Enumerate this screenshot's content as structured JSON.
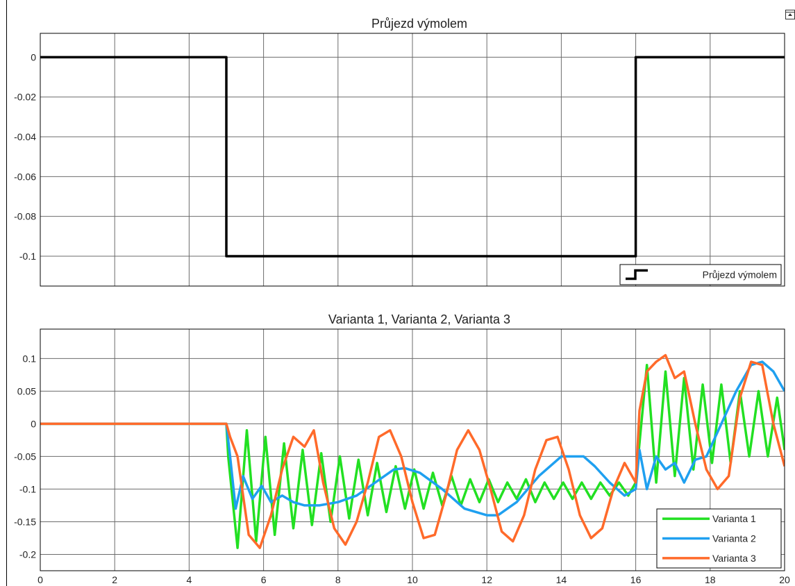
{
  "scope": {
    "colors": {
      "background": "#ffffff",
      "axes_border": "#000000",
      "grid": "#6b6b6b",
      "text": "#222222"
    },
    "toolbar_icon": "restore-window-icon"
  },
  "chart_data": [
    {
      "type": "line",
      "title": "Průjezd výmolem",
      "xlim": [
        0,
        20
      ],
      "ylim": [
        -0.115,
        0.012
      ],
      "xticks": [
        0,
        2,
        4,
        6,
        8,
        10,
        12,
        14,
        16,
        18,
        20
      ],
      "yticks": [
        -0.1,
        -0.08,
        -0.06,
        -0.04,
        -0.02,
        0
      ],
      "ytick_labels": [
        "-0.1",
        "-0.08",
        "-0.06",
        "-0.04",
        "-0.02",
        "0"
      ],
      "show_xtick_labels": false,
      "grid": true,
      "legend_placement": "bottom-right",
      "series": [
        {
          "name": "Průjezd výmolem",
          "color": "#000000",
          "x": [
            0,
            5,
            5,
            16,
            16,
            20
          ],
          "y": [
            0,
            0,
            -0.1,
            -0.1,
            0,
            0
          ]
        }
      ]
    },
    {
      "type": "line",
      "title": "Varianta 1, Varianta 2, Varianta 3",
      "xlim": [
        0,
        20
      ],
      "ylim": [
        -0.225,
        0.145
      ],
      "xticks": [
        0,
        2,
        4,
        6,
        8,
        10,
        12,
        14,
        16,
        18,
        20
      ],
      "xtick_labels": [
        "0",
        "2",
        "4",
        "6",
        "8",
        "10",
        "12",
        "14",
        "16",
        "18",
        "20"
      ],
      "yticks": [
        -0.2,
        -0.15,
        -0.1,
        -0.05,
        0,
        0.05,
        0.1
      ],
      "ytick_labels": [
        "-0.2",
        "-0.15",
        "-0.1",
        "-0.05",
        "0",
        "0.05",
        "0.1"
      ],
      "show_xtick_labels": true,
      "grid": true,
      "legend_placement": "bottom-right",
      "series": [
        {
          "name": "Varianta 1",
          "color": "#22e022",
          "x": [
            0,
            5,
            5.05,
            5.3,
            5.55,
            5.8,
            6.05,
            6.3,
            6.55,
            6.8,
            7.05,
            7.3,
            7.55,
            7.8,
            8.05,
            8.3,
            8.55,
            8.8,
            9.05,
            9.3,
            9.55,
            9.8,
            10.05,
            10.3,
            10.55,
            10.8,
            11.05,
            11.3,
            11.55,
            11.8,
            12.05,
            12.3,
            12.55,
            12.8,
            13.05,
            13.3,
            13.55,
            13.8,
            14.05,
            14.3,
            14.55,
            14.8,
            15.05,
            15.3,
            15.55,
            15.8,
            16.0,
            16.05,
            16.3,
            16.55,
            16.8,
            17.05,
            17.3,
            17.55,
            17.8,
            18.05,
            18.3,
            18.55,
            18.8,
            19.05,
            19.3,
            19.55,
            19.8,
            20.0
          ],
          "y": [
            0,
            0,
            -0.05,
            -0.19,
            -0.01,
            -0.18,
            -0.02,
            -0.17,
            -0.03,
            -0.16,
            -0.04,
            -0.155,
            -0.045,
            -0.15,
            -0.05,
            -0.145,
            -0.055,
            -0.14,
            -0.06,
            -0.135,
            -0.065,
            -0.13,
            -0.07,
            -0.13,
            -0.075,
            -0.125,
            -0.08,
            -0.125,
            -0.085,
            -0.12,
            -0.085,
            -0.12,
            -0.09,
            -0.115,
            -0.085,
            -0.12,
            -0.09,
            -0.115,
            -0.09,
            -0.115,
            -0.09,
            -0.115,
            -0.09,
            -0.11,
            -0.09,
            -0.11,
            -0.09,
            -0.06,
            0.09,
            -0.09,
            0.08,
            -0.08,
            0.07,
            -0.07,
            0.06,
            -0.06,
            0.06,
            -0.06,
            0.05,
            -0.05,
            0.05,
            -0.05,
            0.04,
            -0.04
          ]
        },
        {
          "name": "Varianta 2",
          "color": "#1fa0f0",
          "x": [
            0,
            5,
            5.1,
            5.25,
            5.45,
            5.7,
            5.95,
            6.2,
            6.5,
            6.8,
            7.1,
            7.5,
            8.0,
            8.5,
            9.0,
            9.5,
            9.8,
            10.2,
            10.8,
            11.4,
            12.0,
            12.3,
            12.8,
            13.4,
            14.0,
            14.6,
            14.9,
            15.3,
            15.7,
            16.0,
            16.1,
            16.3,
            16.55,
            16.8,
            17.05,
            17.3,
            17.6,
            17.9,
            18.3,
            18.7,
            19.1,
            19.4,
            19.7,
            20.0
          ],
          "y": [
            0,
            0,
            -0.05,
            -0.13,
            -0.08,
            -0.115,
            -0.095,
            -0.12,
            -0.11,
            -0.12,
            -0.125,
            -0.125,
            -0.12,
            -0.11,
            -0.09,
            -0.07,
            -0.068,
            -0.075,
            -0.1,
            -0.13,
            -0.14,
            -0.14,
            -0.12,
            -0.08,
            -0.05,
            -0.05,
            -0.065,
            -0.09,
            -0.11,
            -0.1,
            -0.04,
            -0.1,
            -0.05,
            -0.07,
            -0.06,
            -0.09,
            -0.055,
            -0.05,
            0.0,
            0.05,
            0.09,
            0.095,
            0.08,
            0.05
          ]
        },
        {
          "name": "Varianta 3",
          "color": "#ff6a2a",
          "x": [
            0,
            5,
            5.1,
            5.3,
            5.6,
            5.9,
            6.2,
            6.5,
            6.8,
            7.1,
            7.35,
            7.6,
            7.9,
            8.2,
            8.5,
            8.8,
            9.1,
            9.4,
            9.7,
            10.0,
            10.3,
            10.6,
            10.9,
            11.2,
            11.5,
            11.8,
            12.1,
            12.4,
            12.7,
            13.0,
            13.3,
            13.6,
            13.9,
            14.2,
            14.5,
            14.8,
            15.1,
            15.4,
            15.7,
            16.0,
            16.1,
            16.3,
            16.55,
            16.8,
            17.05,
            17.3,
            17.6,
            17.9,
            18.2,
            18.5,
            18.8,
            19.1,
            19.4,
            19.7,
            20.0
          ],
          "y": [
            0,
            0,
            -0.02,
            -0.05,
            -0.17,
            -0.19,
            -0.14,
            -0.07,
            -0.02,
            -0.035,
            -0.01,
            -0.09,
            -0.16,
            -0.185,
            -0.15,
            -0.09,
            -0.02,
            -0.01,
            -0.05,
            -0.12,
            -0.175,
            -0.17,
            -0.11,
            -0.04,
            -0.01,
            -0.04,
            -0.1,
            -0.165,
            -0.18,
            -0.14,
            -0.07,
            -0.025,
            -0.02,
            -0.07,
            -0.14,
            -0.175,
            -0.16,
            -0.1,
            -0.06,
            -0.09,
            0.02,
            0.08,
            0.095,
            0.105,
            0.07,
            0.08,
            0.0,
            -0.07,
            -0.1,
            -0.08,
            0.04,
            0.095,
            0.09,
            0.0,
            -0.065
          ]
        }
      ]
    }
  ]
}
